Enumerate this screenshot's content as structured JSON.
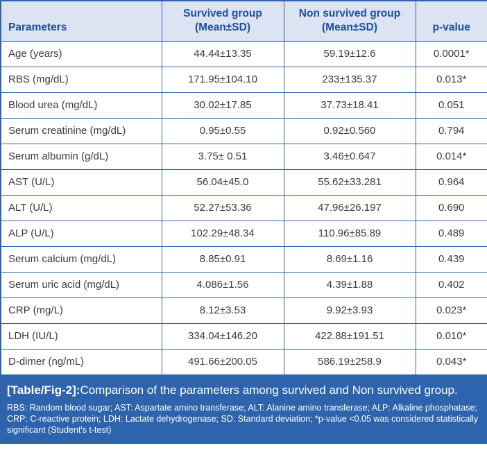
{
  "colors": {
    "border_blue": "#2e64ad",
    "header_bg": "#dce3f2",
    "header_text": "#1e4fa1",
    "footer_bg": "#2e64ad",
    "body_text": "#3c3c3c"
  },
  "table": {
    "columns": [
      {
        "label": "Parameters",
        "sub": ""
      },
      {
        "label": "Survived group",
        "sub": "(Mean±SD)"
      },
      {
        "label": "Non survived group",
        "sub": "(Mean±SD)"
      },
      {
        "label": "p-value",
        "sub": ""
      }
    ],
    "rows": [
      {
        "parameter": "Age (years)",
        "survived": "44.44±13.35",
        "non_survived": "59.19±12.6",
        "p_value": "0.0001*"
      },
      {
        "parameter": "RBS (mg/dL)",
        "survived": "171.95±104.10",
        "non_survived": "233±135.37",
        "p_value": "0.013*"
      },
      {
        "parameter": "Blood urea (mg/dL)",
        "survived": "30.02±17.85",
        "non_survived": "37.73±18.41",
        "p_value": "0.051"
      },
      {
        "parameter": "Serum creatinine (mg/dL)",
        "survived": "0.95±0.55",
        "non_survived": "0.92±0.560",
        "p_value": "0.794"
      },
      {
        "parameter": "Serum albumin (g/dL)",
        "survived": "3.75± 0.51",
        "non_survived": "3.46±0.647",
        "p_value": "0.014*"
      },
      {
        "parameter": "AST (U/L)",
        "survived": "56.04±45.0",
        "non_survived": "55.62±33.281",
        "p_value": "0.964"
      },
      {
        "parameter": "ALT (U/L)",
        "survived": "52.27±53.36",
        "non_survived": "47.96±26.197",
        "p_value": "0.690"
      },
      {
        "parameter": "ALP (U/L)",
        "survived": "102.29±48.34",
        "non_survived": "110.96±85.89",
        "p_value": "0.489"
      },
      {
        "parameter": "Serum calcium (mg/dL)",
        "survived": "8.85±0.91",
        "non_survived": "8.69±1.16",
        "p_value": "0.439"
      },
      {
        "parameter": "Serum uric acid (mg/dL)",
        "survived": "4.086±1.56",
        "non_survived": "4.39±1.88",
        "p_value": "0.402"
      },
      {
        "parameter": "CRP (mg/L)",
        "survived": "8.12±3.53",
        "non_survived": "9.92±3.93",
        "p_value": "0.023*"
      },
      {
        "parameter": "LDH (IU/L)",
        "survived": "334.04±146.20",
        "non_survived": "422.88±191.51",
        "p_value": "0.010*"
      },
      {
        "parameter": "D-dimer (ng/mL)",
        "survived": "491.66±200.05",
        "non_survived": "586.19±258.9",
        "p_value": "0.043*"
      }
    ]
  },
  "caption": {
    "label": "[Table/Fig-2]:",
    "text": "Comparison of the parameters among survived and Non survived group.",
    "footnote": "RBS: Random blood sugar; AST: Aspartate amino transferase; ALT: Alanine amino transferase; ALP: Alkaline phosphatase; CRP: C-reactive protein; LDH: Lactate dehydrogenase; SD: Standard deviation; *p-value <0.05 was considered statistically significant (Student's t-test)"
  }
}
